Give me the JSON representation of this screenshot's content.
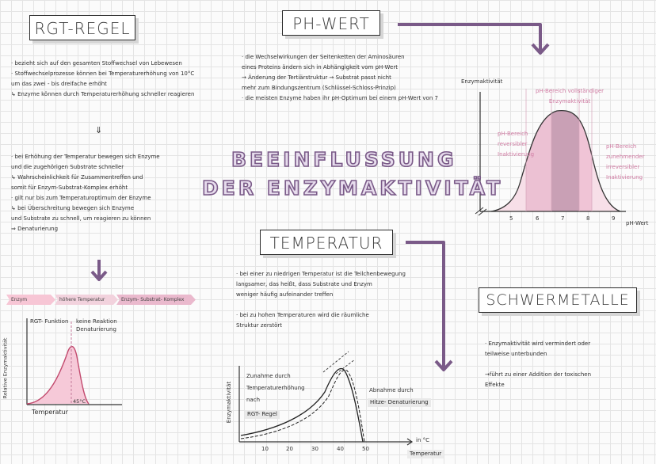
{
  "rgt": {
    "title": "RGT-REGEL",
    "lines": [
      "· bezieht sich auf den gesamten Stoffwechsel von Lebewesen",
      "· Stoffwechselprozesse können bei Temperaturerhöhung von 10°C",
      "  um das zwei - bis dreifache erhöht",
      "↳ Enzyme können durch Temperaturerhöhung schneller reagieren"
    ],
    "arrow": "⇓",
    "lines2": [
      "· bei Erhöhung der Temperatur bewegen sich Enzyme",
      "  und die zugehörigen Substrate schneller",
      "↳ Wahrscheinlichkeit für Zusammentreffen und",
      "  somit für Enzym-Substrat-Komplex erhöht",
      "· gilt nur bis zum Temperaturoptimum der Enzyme",
      "↳ bei Überschreitung bewegen sich Enzyme",
      "  und Substrate zu schnell, um reagieren zu können",
      "⇒ Denaturierung"
    ],
    "tags": [
      "Enzym",
      "höhere Temperatur",
      "Enzym- Substrat- Komplex"
    ],
    "graph": {
      "ylabel": "Relative Enzymaktivität",
      "xlabel": "Temperatur",
      "label_rgt": "RGT- Funktion",
      "label_denat": "keine Reaktion\nDenaturierung",
      "opt": "45°C"
    }
  },
  "ph": {
    "title": "PH-WERT",
    "lines": [
      "· die Wechselwirkungen der Seitenketten der Aminosäuren",
      "  eines Proteins ändern sich in Abhängigkeit vom pH-Wert",
      "  → Änderung der Tertiärstruktur → Substrat passt nicht",
      "  mehr zum Bindungszentrum (Schlüssel-Schloss-Prinzip)",
      "· die meisten Enzyme haben ihr pH-Optimum bei einem pH-Wert von 7"
    ],
    "graph": {
      "ylabel": "Enzymaktivität",
      "xlabel": "pH-Wert",
      "ticks": [
        "5",
        "6",
        "7",
        "8",
        "9"
      ],
      "label_left": "pH-Bereich\nreversibler\nInaktivierung",
      "label_top": "pH-Bereich vollständiger\nEnzymaktivität",
      "label_right": "pH-Bereich\nzunehmender\nirreversibler\nInaktivierung"
    }
  },
  "main_title": [
    "BEEINFLUSSUNG",
    "DER ENZYMAKTIVITÄT"
  ],
  "temp": {
    "title": "TEMPERATUR",
    "lines": [
      "· bei einer zu niedrigen Temperatur ist die Teilchenbewegung",
      "  langsamer, das heißt, dass Substrate und Enzym",
      "  weniger häufig aufeinander treffen",
      "",
      "· bei zu hohen Temperaturen wird die räumliche",
      "  Struktur zerstört"
    ],
    "graph": {
      "ylabel": "Enzymaktivität",
      "xlabel": "Temperatur",
      "unit": "in °C",
      "ticks": [
        "10",
        "20",
        "30",
        "40",
        "50"
      ],
      "label_zunahme": "Zunahme durch\nTemperaturerhöhung\nnach",
      "label_rgt": "RGT- Regel",
      "label_abnahme": "Abnahme durch",
      "label_hitze": "Hitze- Denaturierung"
    }
  },
  "schwer": {
    "title": "SCHWERMETALLE",
    "lines": [
      "· Enzymaktivität wird vermindert oder",
      "  teilweise unterbunden",
      "",
      "→führt zu einer Addition der toxischen",
      "  Effekte"
    ]
  },
  "colors": {
    "purple": "#7a5a88",
    "pink": "#f4c9d6",
    "mauve": "#c49aaf",
    "light_pink": "#f8e1ea"
  }
}
